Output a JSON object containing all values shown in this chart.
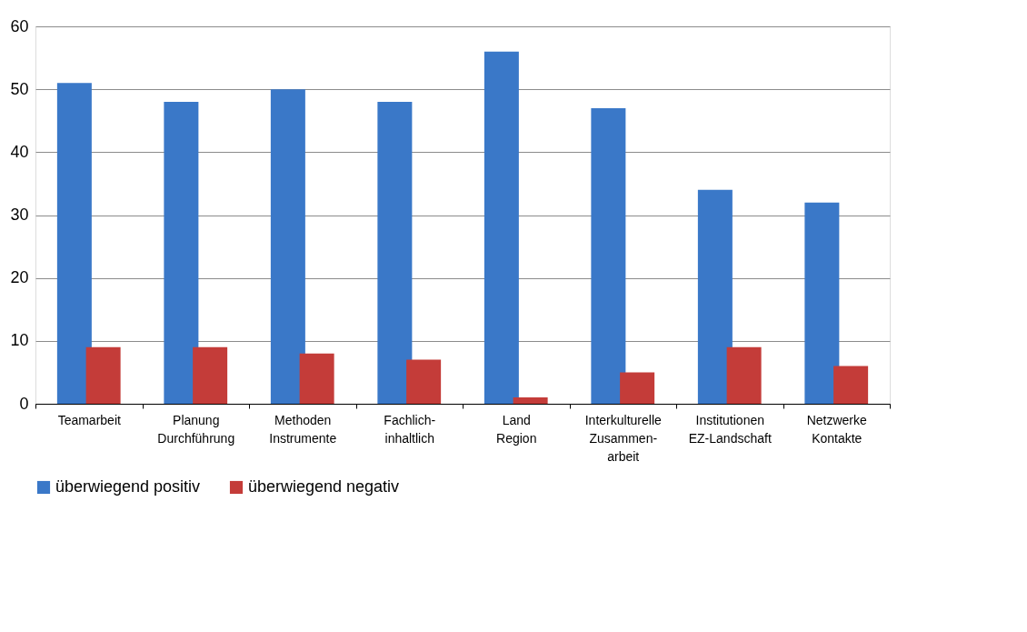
{
  "chart_data": {
    "type": "bar",
    "categories": [
      "Teamarbeit",
      "Planung\nDurchführung",
      "Methoden\nInstrumente",
      "Fachlich-\ninhaltlich",
      "Land\nRegion",
      "Interkulturelle\nZusammen-\narbeit",
      "Institutionen\nEZ-Landschaft",
      "Netzwerke\nKontakte"
    ],
    "series": [
      {
        "name": "überwiegend positiv",
        "color": "#3a78c8",
        "values": [
          51,
          48,
          50,
          48,
          56,
          47,
          34,
          32
        ]
      },
      {
        "name": "überwiegend negativ",
        "color": "#c43c39",
        "values": [
          9,
          9,
          8,
          7,
          1,
          5,
          9,
          6
        ]
      }
    ],
    "ylim": [
      0,
      60
    ],
    "yticks": [
      0,
      10,
      20,
      30,
      40,
      50,
      60
    ],
    "grid": "y",
    "legend": "bottom"
  }
}
